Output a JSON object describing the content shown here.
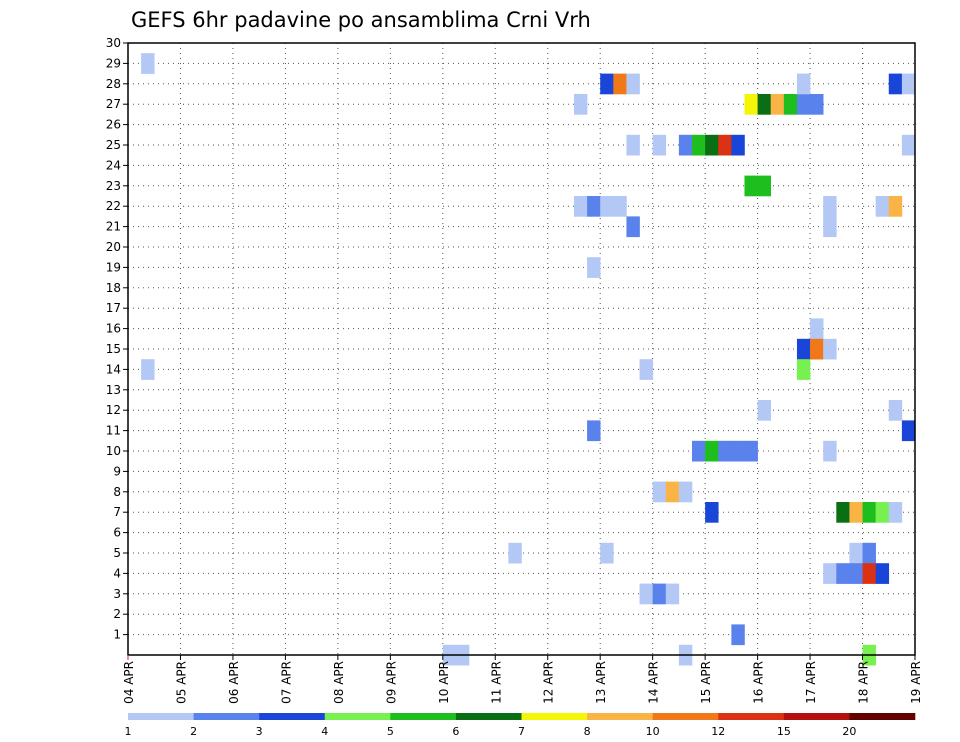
{
  "chart_data": {
    "type": "heatmap",
    "title": "GEFS 6hr padavine po ansamblima Crni Vrh",
    "x_labels": [
      "04 APR",
      "05 APR",
      "06 APR",
      "07 APR",
      "08 APR",
      "09 APR",
      "10 APR",
      "11 APR",
      "12 APR",
      "13 APR",
      "14 APR",
      "15 APR",
      "16 APR",
      "17 APR",
      "18 APR",
      "19 APR"
    ],
    "y_labels": [
      "1",
      "2",
      "3",
      "4",
      "5",
      "6",
      "7",
      "8",
      "9",
      "10",
      "11",
      "12",
      "13",
      "14",
      "15",
      "16",
      "17",
      "18",
      "19",
      "20",
      "21",
      "22",
      "23",
      "24",
      "25",
      "26",
      "27",
      "28",
      "29",
      "30"
    ],
    "x_range_days": [
      0,
      15
    ],
    "y_range": [
      0,
      30
    ],
    "grid": "dotted",
    "legend": {
      "position": "bottom",
      "labels": [
        "1",
        "2",
        "3",
        "4",
        "5",
        "6",
        "7",
        "8",
        "10",
        "12",
        "15",
        "20"
      ],
      "colors": [
        "#b4c8f5",
        "#5a82ec",
        "#1946d9",
        "#78f050",
        "#1ebe1e",
        "#0a6e14",
        "#f5f50a",
        "#fab446",
        "#f07818",
        "#dc3214",
        "#b40f0f",
        "#640000"
      ]
    },
    "cells": [
      {
        "d": 0.25,
        "m": 29,
        "c": 0
      },
      {
        "d": 0.25,
        "m": 14,
        "c": 0
      },
      {
        "d": 6.0,
        "m": 0,
        "c": 0
      },
      {
        "d": 6.25,
        "m": 0,
        "c": 0
      },
      {
        "d": 7.25,
        "m": 5,
        "c": 0
      },
      {
        "d": 8.5,
        "m": 27,
        "c": 0
      },
      {
        "d": 8.5,
        "m": 22,
        "c": 0
      },
      {
        "d": 8.75,
        "m": 22,
        "c": 1
      },
      {
        "d": 8.75,
        "m": 19,
        "c": 0
      },
      {
        "d": 8.75,
        "m": 11,
        "c": 1
      },
      {
        "d": 9.0,
        "m": 28,
        "c": 2
      },
      {
        "d": 9.0,
        "m": 22,
        "c": 0
      },
      {
        "d": 9.25,
        "m": 28,
        "c": 8
      },
      {
        "d": 9.25,
        "m": 22,
        "c": 0
      },
      {
        "d": 9.0,
        "m": 5,
        "c": 0
      },
      {
        "d": 9.5,
        "m": 28,
        "c": 0
      },
      {
        "d": 9.5,
        "m": 25,
        "c": 0
      },
      {
        "d": 9.5,
        "m": 21,
        "c": 1
      },
      {
        "d": 9.75,
        "m": 14,
        "c": 0
      },
      {
        "d": 9.75,
        "m": 3,
        "c": 0
      },
      {
        "d": 10.0,
        "m": 25,
        "c": 0
      },
      {
        "d": 10.0,
        "m": 8,
        "c": 0
      },
      {
        "d": 10.0,
        "m": 3,
        "c": 1
      },
      {
        "d": 10.25,
        "m": 8,
        "c": 7
      },
      {
        "d": 10.25,
        "m": 3,
        "c": 0
      },
      {
        "d": 10.5,
        "m": 25,
        "c": 1
      },
      {
        "d": 10.5,
        "m": 8,
        "c": 0
      },
      {
        "d": 10.5,
        "m": 0,
        "c": 0
      },
      {
        "d": 10.75,
        "m": 25,
        "c": 4
      },
      {
        "d": 10.75,
        "m": 10,
        "c": 1
      },
      {
        "d": 11.0,
        "m": 25,
        "c": 5
      },
      {
        "d": 11.0,
        "m": 10,
        "c": 4
      },
      {
        "d": 11.0,
        "m": 7,
        "c": 2
      },
      {
        "d": 11.25,
        "m": 25,
        "c": 9
      },
      {
        "d": 11.25,
        "m": 10,
        "c": 1
      },
      {
        "d": 11.5,
        "m": 25,
        "c": 2
      },
      {
        "d": 11.5,
        "m": 10,
        "c": 1
      },
      {
        "d": 11.5,
        "m": 1,
        "c": 1
      },
      {
        "d": 11.75,
        "m": 10,
        "c": 1
      },
      {
        "d": 11.75,
        "m": 23,
        "c": 4
      },
      {
        "d": 12.0,
        "m": 23,
        "c": 4
      },
      {
        "d": 12.0,
        "m": 12,
        "c": 0
      },
      {
        "d": 11.75,
        "m": 27,
        "c": 6
      },
      {
        "d": 12.0,
        "m": 27,
        "c": 5
      },
      {
        "d": 12.25,
        "m": 27,
        "c": 7
      },
      {
        "d": 12.5,
        "m": 27,
        "c": 4
      },
      {
        "d": 12.75,
        "m": 27,
        "c": 1
      },
      {
        "d": 12.75,
        "m": 28,
        "c": 0
      },
      {
        "d": 13.0,
        "m": 27,
        "c": 1
      },
      {
        "d": 12.75,
        "m": 15,
        "c": 2
      },
      {
        "d": 12.75,
        "m": 14,
        "c": 3
      },
      {
        "d": 13.0,
        "m": 16,
        "c": 0
      },
      {
        "d": 13.0,
        "m": 15,
        "c": 8
      },
      {
        "d": 13.25,
        "m": 22,
        "c": 0
      },
      {
        "d": 13.25,
        "m": 21,
        "c": 0
      },
      {
        "d": 13.25,
        "m": 15,
        "c": 0
      },
      {
        "d": 13.25,
        "m": 10,
        "c": 0
      },
      {
        "d": 13.25,
        "m": 4,
        "c": 0
      },
      {
        "d": 13.5,
        "m": 7,
        "c": 5
      },
      {
        "d": 13.5,
        "m": 4,
        "c": 1
      },
      {
        "d": 13.75,
        "m": 7,
        "c": 7
      },
      {
        "d": 13.75,
        "m": 5,
        "c": 0
      },
      {
        "d": 13.75,
        "m": 4,
        "c": 1
      },
      {
        "d": 14.0,
        "m": 7,
        "c": 4
      },
      {
        "d": 14.0,
        "m": 5,
        "c": 1
      },
      {
        "d": 14.0,
        "m": 4,
        "c": 9
      },
      {
        "d": 14.0,
        "m": 0,
        "c": 3
      },
      {
        "d": 14.25,
        "m": 22,
        "c": 0
      },
      {
        "d": 14.25,
        "m": 7,
        "c": 3
      },
      {
        "d": 14.25,
        "m": 4,
        "c": 2
      },
      {
        "d": 14.5,
        "m": 22,
        "c": 7
      },
      {
        "d": 14.5,
        "m": 7,
        "c": 0
      },
      {
        "d": 14.5,
        "m": 28,
        "c": 2
      },
      {
        "d": 14.75,
        "m": 28,
        "c": 0
      },
      {
        "d": 14.75,
        "m": 25,
        "c": 0
      },
      {
        "d": 14.5,
        "m": 12,
        "c": 0
      },
      {
        "d": 14.75,
        "m": 11,
        "c": 2
      }
    ]
  }
}
